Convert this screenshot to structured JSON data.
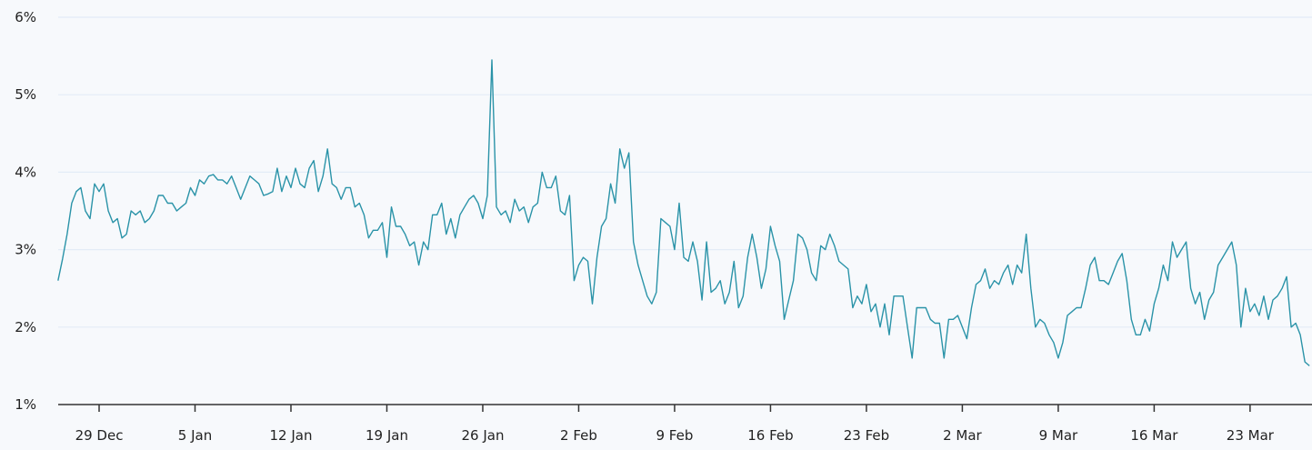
{
  "chart_data": {
    "type": "line",
    "title": "",
    "xlabel": "",
    "ylabel": "",
    "ylim": [
      1,
      6
    ],
    "y_unit": "%",
    "y_ticks": [
      "1%",
      "2%",
      "3%",
      "4%",
      "5%",
      "6%"
    ],
    "x_ticks": [
      "29 Dec",
      "5 Jan",
      "12 Jan",
      "19 Jan",
      "26 Jan",
      "2 Feb",
      "9 Feb",
      "16 Feb",
      "23 Feb",
      "2 Mar",
      "9 Mar",
      "16 Mar",
      "23 Mar"
    ],
    "x_start": "26 Dec 00:00",
    "x_interval_hours": 8,
    "grid": "horizontal",
    "line_color": "#2a93a8",
    "values": [
      2.6,
      2.88,
      3.2,
      3.6,
      3.75,
      3.8,
      3.5,
      3.4,
      3.85,
      3.75,
      3.85,
      3.5,
      3.35,
      3.4,
      3.15,
      3.2,
      3.5,
      3.45,
      3.5,
      3.35,
      3.4,
      3.5,
      3.7,
      3.7,
      3.6,
      3.6,
      3.5,
      3.55,
      3.6,
      3.8,
      3.7,
      3.9,
      3.85,
      3.95,
      3.97,
      3.9,
      3.9,
      3.85,
      3.95,
      3.8,
      3.65,
      3.8,
      3.95,
      3.9,
      3.85,
      3.7,
      3.72,
      3.75,
      4.05,
      3.75,
      3.95,
      3.8,
      4.05,
      3.85,
      3.8,
      4.05,
      4.15,
      3.75,
      3.95,
      4.3,
      3.85,
      3.8,
      3.65,
      3.8,
      3.8,
      3.55,
      3.6,
      3.45,
      3.15,
      3.25,
      3.25,
      3.35,
      2.9,
      3.55,
      3.3,
      3.3,
      3.2,
      3.05,
      3.1,
      2.8,
      3.1,
      3.0,
      3.45,
      3.45,
      3.6,
      3.2,
      3.4,
      3.15,
      3.45,
      3.55,
      3.65,
      3.7,
      3.6,
      3.4,
      3.7,
      5.45,
      3.55,
      3.45,
      3.5,
      3.35,
      3.65,
      3.5,
      3.55,
      3.35,
      3.55,
      3.6,
      4.0,
      3.8,
      3.8,
      3.95,
      3.5,
      3.45,
      3.7,
      2.6,
      2.8,
      2.9,
      2.85,
      2.3,
      2.9,
      3.3,
      3.4,
      3.85,
      3.6,
      4.3,
      4.05,
      4.25,
      3.1,
      2.8,
      2.6,
      2.4,
      2.3,
      2.45,
      3.4,
      3.35,
      3.3,
      3.0,
      3.6,
      2.9,
      2.85,
      3.1,
      2.85,
      2.35,
      3.1,
      2.45,
      2.5,
      2.6,
      2.3,
      2.45,
      2.85,
      2.25,
      2.4,
      2.9,
      3.2,
      2.9,
      2.5,
      2.75,
      3.3,
      3.05,
      2.85,
      2.1,
      2.35,
      2.6,
      3.2,
      3.15,
      3.0,
      2.7,
      2.6,
      3.05,
      3.0,
      3.2,
      3.05,
      2.85,
      2.8,
      2.75,
      2.25,
      2.4,
      2.3,
      2.55,
      2.2,
      2.3,
      2.0,
      2.3,
      1.9,
      2.4,
      2.4,
      2.4,
      2.0,
      1.6,
      2.25,
      2.25,
      2.25,
      2.1,
      2.05,
      2.05,
      1.6,
      2.1,
      2.1,
      2.15,
      2.0,
      1.85,
      2.25,
      2.55,
      2.6,
      2.75,
      2.5,
      2.6,
      2.55,
      2.7,
      2.8,
      2.55,
      2.8,
      2.7,
      3.2,
      2.5,
      2.0,
      2.1,
      2.05,
      1.9,
      1.8,
      1.6,
      1.8,
      2.15,
      2.2,
      2.25,
      2.25,
      2.5,
      2.8,
      2.9,
      2.6,
      2.6,
      2.55,
      2.7,
      2.85,
      2.95,
      2.6,
      2.1,
      1.9,
      1.9,
      2.1,
      1.95,
      2.3,
      2.5,
      2.8,
      2.6,
      3.1,
      2.9,
      3.0,
      3.1,
      2.5,
      2.3,
      2.45,
      2.1,
      2.35,
      2.45,
      2.8,
      2.9,
      3.0,
      3.1,
      2.8,
      2.0,
      2.5,
      2.2,
      2.3,
      2.15,
      2.4,
      2.1,
      2.35,
      2.4,
      2.5,
      2.65,
      2.0,
      2.05,
      1.9,
      1.55,
      1.5
    ]
  }
}
